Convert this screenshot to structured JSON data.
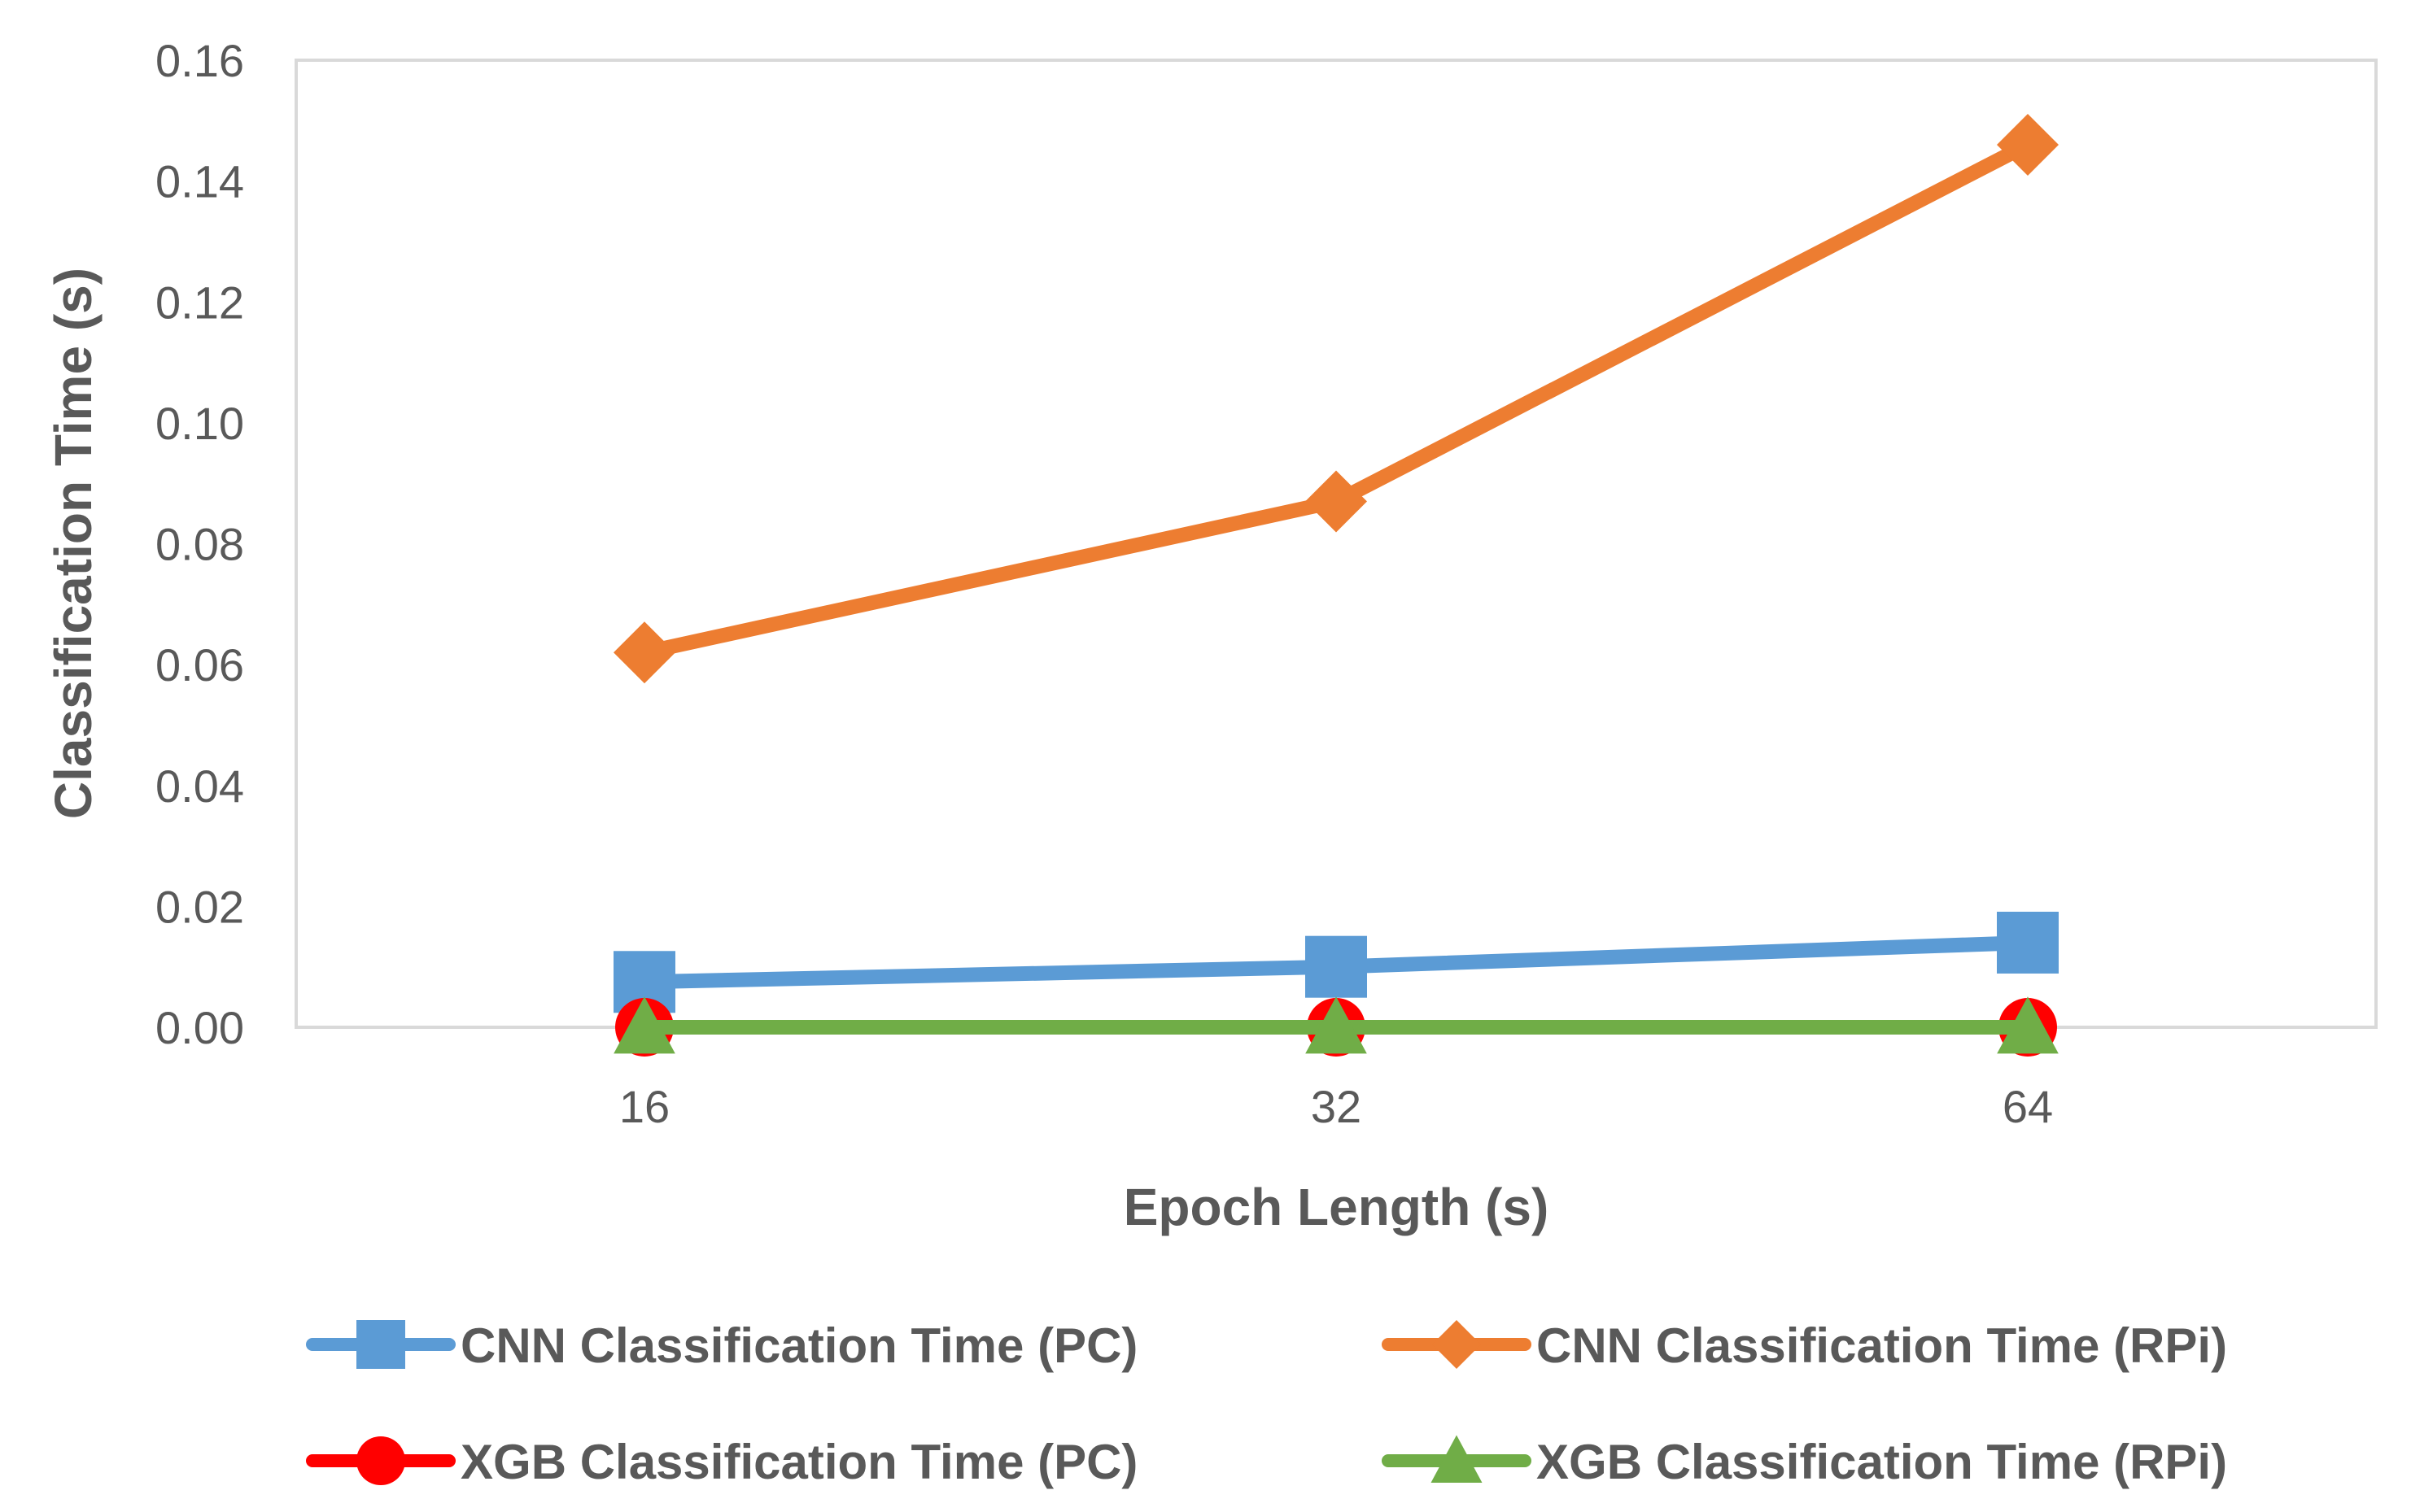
{
  "chart_data": {
    "type": "line",
    "title": "",
    "xlabel": "Epoch Length (s)",
    "ylabel": "Classification Time (s)",
    "categories": [
      "16",
      "32",
      "64"
    ],
    "ylim": [
      0,
      0.16
    ],
    "yticks": [
      "0.00",
      "0.02",
      "0.04",
      "0.06",
      "0.08",
      "0.10",
      "0.12",
      "0.14",
      "0.16"
    ],
    "grid": false,
    "legend_position": "bottom",
    "series": [
      {
        "name": "CNN Classification Time (PC)",
        "values": [
          0.0075,
          0.01,
          0.014
        ],
        "color": "#5B9BD5",
        "marker": "square"
      },
      {
        "name": "CNN Classification Time (RPi)",
        "values": [
          0.062,
          0.087,
          0.146
        ],
        "color": "#ED7D31",
        "marker": "diamond"
      },
      {
        "name": "XGB Classification Time (PC)",
        "values": [
          0.0,
          0.0,
          0.0
        ],
        "color": "#FF0000",
        "marker": "circle"
      },
      {
        "name": "XGB Classification Time (RPi)",
        "values": [
          0.0,
          0.0,
          0.0
        ],
        "color": "#70AD47",
        "marker": "triangle"
      }
    ]
  }
}
